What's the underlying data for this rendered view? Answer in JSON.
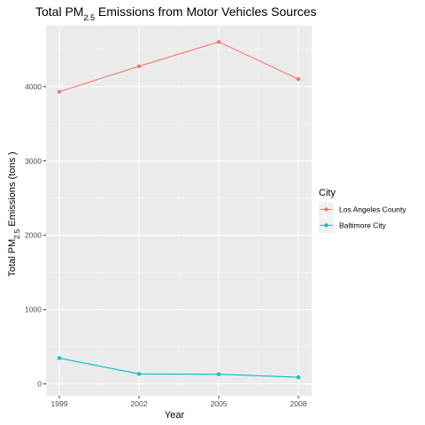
{
  "chart_data": {
    "type": "line",
    "title": {
      "main": "Total PM",
      "sub": "2.5",
      "rest": " Emissions from Motor Vehicles Sources"
    },
    "xlabel": "Year",
    "ylabel": {
      "main": "Total PM",
      "sub": "2.5",
      "rest": " Emissions (tons )"
    },
    "x": [
      1999,
      2002,
      2005,
      2008
    ],
    "x_ticks": [
      "1999",
      "2002",
      "2005",
      "2008"
    ],
    "y_ticks": [
      0,
      1000,
      2000,
      3000,
      4000
    ],
    "y_tick_labels": [
      "0",
      "1000",
      "2000",
      "3000",
      "4000"
    ],
    "xlim": [
      1998.5,
      2008.5
    ],
    "ylim": [
      -160,
      4820
    ],
    "grid": true,
    "legend": {
      "title": "City",
      "placement": "right"
    },
    "series": [
      {
        "name": "Los Angeles County",
        "color": "#F8766D",
        "values": [
          3931,
          4274,
          4602,
          4101
        ]
      },
      {
        "name": "Baltimore City",
        "color": "#00BFC4",
        "values": [
          347,
          134,
          130,
          89
        ]
      }
    ]
  }
}
